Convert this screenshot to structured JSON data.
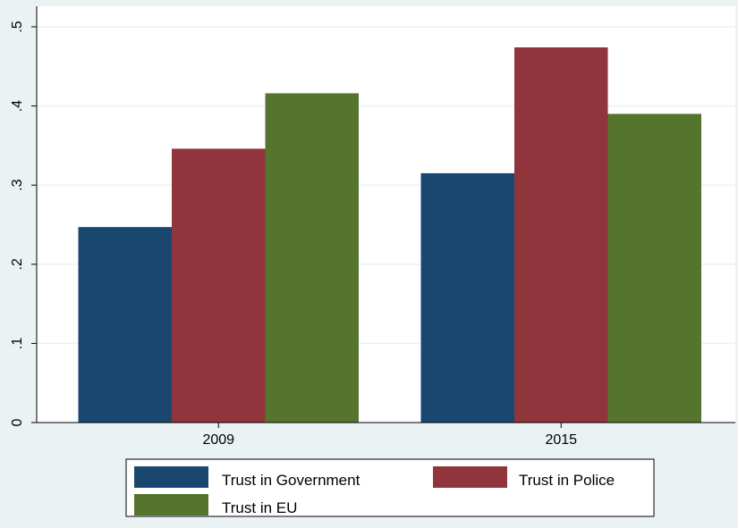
{
  "chart_data": {
    "type": "bar",
    "categories": [
      "2009",
      "2015"
    ],
    "series": [
      {
        "name": "Trust in Government",
        "color": "#1a476f",
        "values": [
          0.247,
          0.315
        ]
      },
      {
        "name": "Trust in Police",
        "color": "#90353b",
        "values": [
          0.346,
          0.474
        ]
      },
      {
        "name": "Trust in EU",
        "color": "#55752f",
        "values": [
          0.416,
          0.39
        ]
      }
    ],
    "yticks": [
      {
        "value": 0,
        "label": "0"
      },
      {
        "value": 0.1,
        "label": ".1"
      },
      {
        "value": 0.2,
        "label": ".2"
      },
      {
        "value": 0.3,
        "label": ".3"
      },
      {
        "value": 0.4,
        "label": ".4"
      },
      {
        "value": 0.5,
        "label": ".5"
      }
    ],
    "ylim": [
      0,
      0.5
    ],
    "grid": true,
    "legend": "bottom",
    "colors": {
      "background": "#eaf2f3",
      "plot_background": "#ffffff",
      "grid": "#eaf2f3"
    }
  }
}
